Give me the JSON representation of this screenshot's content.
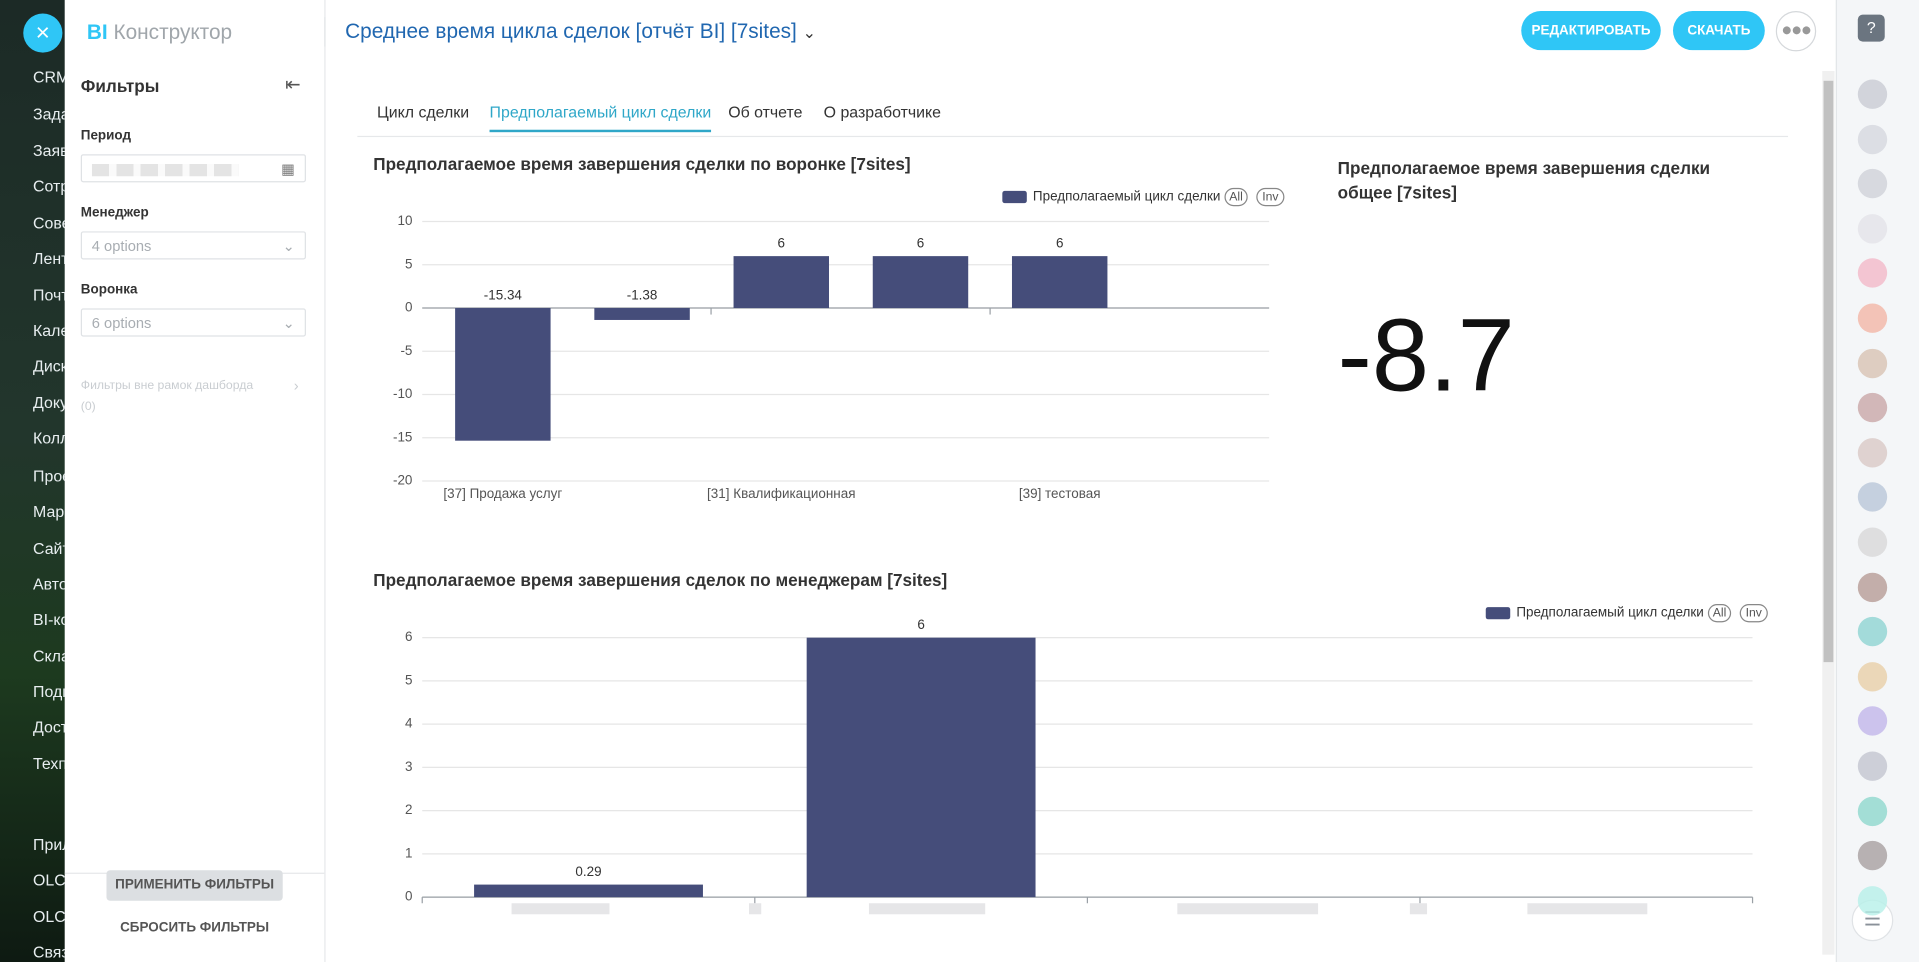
{
  "background_menu": [
    "CRM",
    "Зада",
    "Заяв",
    "Сотр",
    "Сове",
    "Лент",
    "Почт",
    "Кале",
    "Диск",
    "Доку",
    "Колл",
    "Прое",
    "Мар",
    "Сайт",
    "Авто",
    "BI-ко",
    "Скла",
    "Подг",
    "Дост",
    "Техп",
    "Прил",
    "OLCI",
    "OLCI",
    "Связ"
  ],
  "header": {
    "logo_bi": "BI",
    "logo_text": "Конструктор",
    "title": "Среднее время цикла сделок [отчёт BI] [7sites]",
    "buttons": [
      "РЕДАКТИРОВАТЬ",
      "СКАЧАТЬ"
    ]
  },
  "filters": {
    "title": "Фильтры",
    "fields": [
      {
        "label": "Период"
      },
      {
        "label": "Менеджер",
        "value": "4 options"
      },
      {
        "label": "Воронка",
        "value": "6 options"
      }
    ],
    "outside": "Фильтры вне рамок дашборда",
    "outside_count": "(0)",
    "apply": "ПРИМЕНИТЬ ФИЛЬТРЫ",
    "reset": "СБРОСИТЬ ФИЛЬТРЫ"
  },
  "tabs": [
    "Цикл сделки",
    "Предполагаемый цикл сделки",
    "Об отчете",
    "О разработчике"
  ],
  "active_tab": 1,
  "chart_data": [
    {
      "type": "bar",
      "title": "Предполагаемое время завершения сделки по воронке [7sites]",
      "categories": [
        "[37] Продажа услуг",
        null,
        "[31] Квалификационная",
        null,
        "[39] тестовая"
      ],
      "series": [
        {
          "name": "Предполагаемый цикл сделки",
          "color": "#454d7a",
          "values": [
            -15.34,
            -1.38,
            6,
            6,
            6
          ]
        }
      ],
      "legend_buttons": [
        "All",
        "Inv"
      ],
      "ylim": [
        -20,
        10
      ],
      "yticks": [
        -20,
        -15,
        -10,
        -5,
        0,
        5,
        10
      ],
      "grid": true
    },
    {
      "type": "bar",
      "title": "Предполагаемое время завершения сделок по менеджерам [7sites]",
      "categories": [
        null,
        null,
        null,
        null
      ],
      "series": [
        {
          "name": "Предполагаемый цикл сделки",
          "color": "#454d7a",
          "values": [
            0.29,
            6,
            null,
            null
          ]
        }
      ],
      "legend_buttons": [
        "All",
        "Inv"
      ],
      "ylim": [
        0,
        6
      ],
      "yticks": [
        0,
        1,
        2,
        3,
        4,
        5,
        6
      ],
      "grid": true
    }
  ],
  "kpi": {
    "title": "Предполагаемое время завершения сделки общее [7sites]",
    "value": -8.7
  }
}
